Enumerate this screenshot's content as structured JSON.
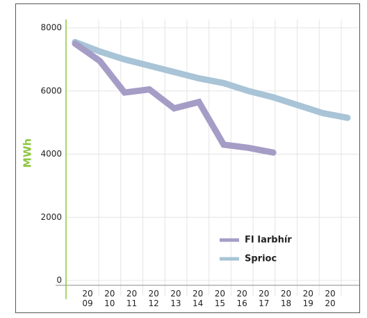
{
  "chart_data": {
    "type": "line",
    "y_label": "MWh",
    "categories": [
      [
        "20",
        "09"
      ],
      [
        "20",
        "10"
      ],
      [
        "20",
        "11"
      ],
      [
        "20",
        "12"
      ],
      [
        "20",
        "13"
      ],
      [
        "20",
        "14"
      ],
      [
        "20",
        "15"
      ],
      [
        "20",
        "16"
      ],
      [
        "20",
        "17"
      ],
      [
        "20",
        "18"
      ],
      [
        "20",
        "19"
      ],
      [
        "20",
        "20"
      ]
    ],
    "series": [
      {
        "name": "FI Iarbhír",
        "color": "#a59dc6",
        "values": [
          7500,
          6950,
          5950,
          6050,
          5450,
          5650,
          4300,
          4200,
          4050,
          null,
          null,
          null
        ]
      },
      {
        "name": "Sprioc",
        "color": "#a8c4d6",
        "values": [
          7550,
          7250,
          7000,
          6800,
          6600,
          6400,
          6250,
          6000,
          5800,
          5550,
          5300,
          5150
        ]
      }
    ],
    "ylim": [
      0,
      8000
    ],
    "yticks": [
      0,
      2000,
      4000,
      6000,
      8000
    ],
    "grid": true,
    "legend": "lower right"
  }
}
